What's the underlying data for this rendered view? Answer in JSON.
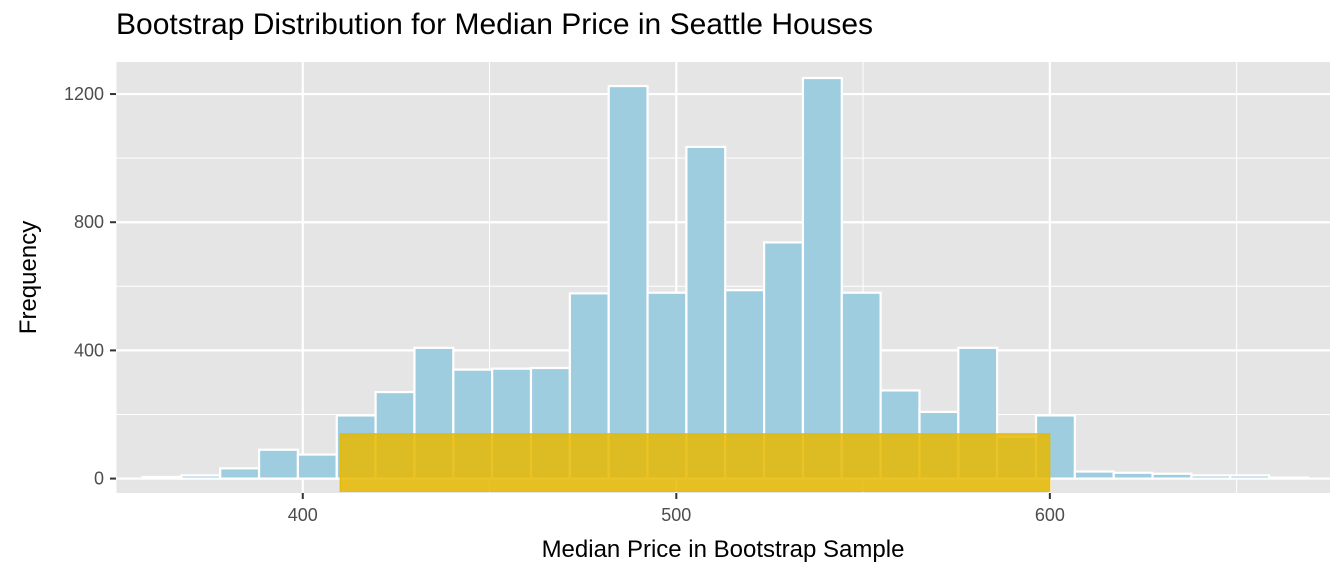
{
  "chart_data": {
    "type": "bar",
    "title": "Bootstrap Distribution for Median Price in Seattle Houses",
    "xlabel": "Median Price in Bootstrap Sample",
    "ylabel": "Frequency",
    "xlim": [
      350,
      675
    ],
    "ylim": [
      -45,
      1300
    ],
    "x_ticks": [
      400,
      500,
      600
    ],
    "y_ticks": [
      0,
      400,
      800,
      1200
    ],
    "grid": true,
    "bin_width": 10.4,
    "bins": [
      {
        "x_start": 357.1,
        "count": 5
      },
      {
        "x_start": 367.5,
        "count": 10
      },
      {
        "x_start": 377.9,
        "count": 32
      },
      {
        "x_start": 388.3,
        "count": 90
      },
      {
        "x_start": 398.7,
        "count": 75
      },
      {
        "x_start": 409.1,
        "count": 197
      },
      {
        "x_start": 419.5,
        "count": 270
      },
      {
        "x_start": 429.9,
        "count": 408
      },
      {
        "x_start": 440.3,
        "count": 340
      },
      {
        "x_start": 450.7,
        "count": 343
      },
      {
        "x_start": 461.1,
        "count": 345
      },
      {
        "x_start": 471.5,
        "count": 578
      },
      {
        "x_start": 481.9,
        "count": 1225
      },
      {
        "x_start": 492.3,
        "count": 580
      },
      {
        "x_start": 502.7,
        "count": 1035
      },
      {
        "x_start": 513.1,
        "count": 588
      },
      {
        "x_start": 523.5,
        "count": 737
      },
      {
        "x_start": 533.9,
        "count": 1250
      },
      {
        "x_start": 544.3,
        "count": 580
      },
      {
        "x_start": 554.7,
        "count": 275
      },
      {
        "x_start": 565.1,
        "count": 208
      },
      {
        "x_start": 575.5,
        "count": 408
      },
      {
        "x_start": 585.9,
        "count": 130
      },
      {
        "x_start": 596.3,
        "count": 197
      },
      {
        "x_start": 606.7,
        "count": 22
      },
      {
        "x_start": 617.1,
        "count": 18
      },
      {
        "x_start": 627.5,
        "count": 15
      },
      {
        "x_start": 637.9,
        "count": 10
      },
      {
        "x_start": 648.3,
        "count": 10
      },
      {
        "x_start": 658.7,
        "count": 3
      }
    ],
    "interval": {
      "x_min": 410,
      "x_max": 600,
      "y_min": -40,
      "y_max": 140
    },
    "colors": {
      "panel": "#e5e5e5",
      "grid": "#ffffff",
      "bar_fill": "#9fcde0",
      "bar_stroke": "#ffffff",
      "interval": "#e6b800"
    }
  }
}
